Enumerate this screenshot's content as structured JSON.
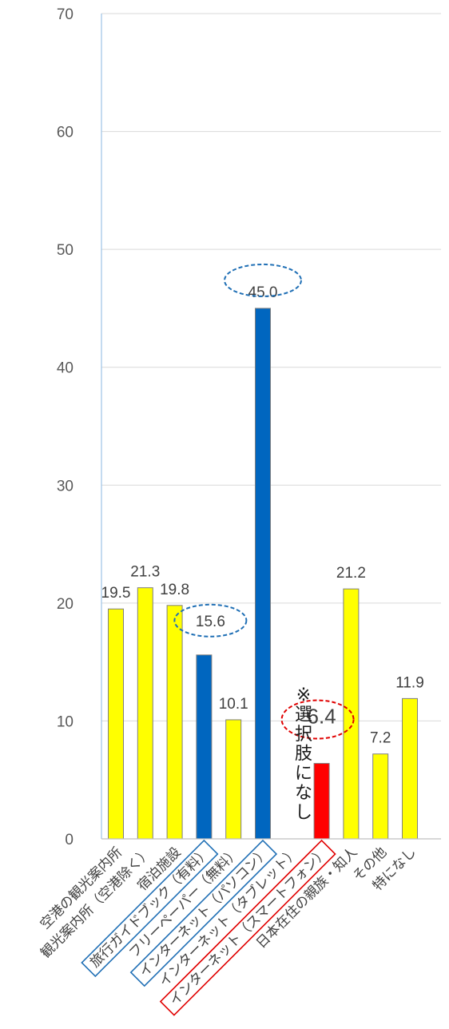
{
  "chart_data": {
    "type": "bar",
    "ylim": [
      0,
      70
    ],
    "yticks": [
      0,
      10,
      20,
      30,
      40,
      50,
      60,
      70
    ],
    "grid": true,
    "categories": [
      "空港の観光案内所",
      "観光案内所（空港除く）",
      "宿泊施設",
      "旅行ガイドブック（有料）",
      "フリーペーパー（無料）",
      "インターネット（パソコン）",
      "インターネット（タブレット）",
      "インターネット（スマートフォン）",
      "日本在住の親族・知人",
      "その他",
      "特になし"
    ],
    "values": [
      19.5,
      21.3,
      19.8,
      15.6,
      10.1,
      45.0,
      null,
      6.4,
      21.2,
      7.2,
      11.9
    ],
    "value_labels": [
      "19.5",
      "21.3",
      "19.8",
      "15.6",
      "10.1",
      "45.0",
      "",
      "6.4",
      "21.2",
      "7.2",
      "11.9"
    ],
    "bar_colors": [
      "#ffff00",
      "#ffff00",
      "#ffff00",
      "#0066bf",
      "#ffff00",
      "#0066bf",
      "#ffffff",
      "#ff0000",
      "#ffff00",
      "#ffff00",
      "#ffff00"
    ],
    "highlight_colors": {
      "blue": "#1f6fb5",
      "red": "#e00000"
    },
    "annotation": "※選択肢になし",
    "annotation_chars": [
      "※",
      "選",
      "択",
      "肢",
      "に",
      "な",
      "し"
    ]
  }
}
